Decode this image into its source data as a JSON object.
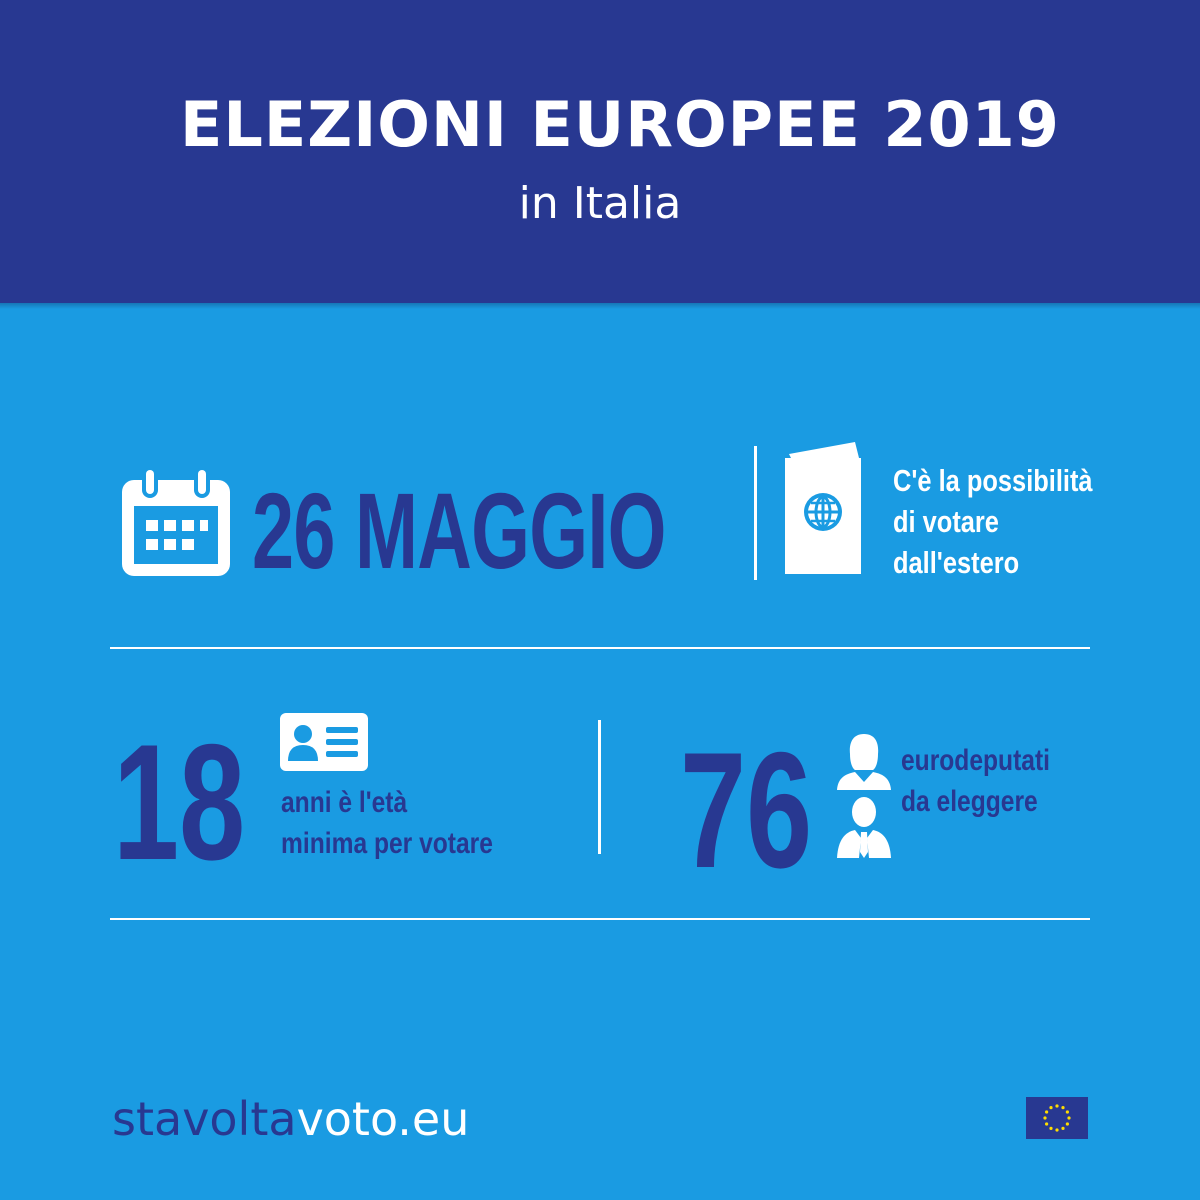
{
  "header": {
    "title": "ELEZIONI EUROPEE 2019",
    "subtitle": "in Italia"
  },
  "date_block": {
    "icon": "calendar-icon",
    "text": "26 MAGGIO"
  },
  "abroad_block": {
    "icon": "passport-icon",
    "lines": [
      "C'è la possibilità",
      "di votare",
      "dall'estero"
    ]
  },
  "age_block": {
    "number": "18",
    "icon": "id-card-icon",
    "lines": [
      "anni è l'età",
      "minima per votare"
    ]
  },
  "meps_block": {
    "number": "76",
    "icon": "people-icon",
    "lines": [
      "eurodeputati",
      "da eleggere"
    ]
  },
  "footer": {
    "url_part1": "stavolta",
    "url_part2": "voto.eu",
    "flag_icon": "eu-flag-icon"
  },
  "colors": {
    "header_bg": "#283891",
    "body_bg": "#1a9be2",
    "accent_dark": "#283891",
    "white": "#ffffff",
    "star_yellow": "#ffdd00"
  }
}
